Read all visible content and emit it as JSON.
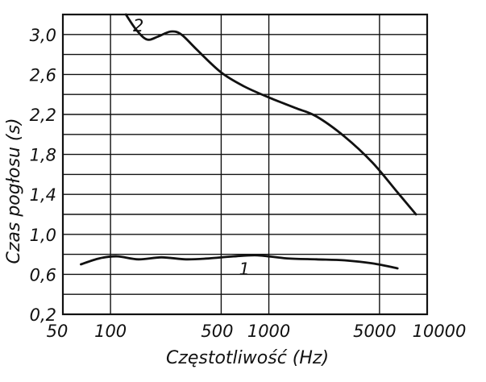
{
  "chart_data": {
    "type": "line",
    "title": "",
    "xlabel": "Częstotliwość (Hz)",
    "ylabel": "Czas pogłosu (s)",
    "xscale": "log",
    "xlim": [
      50,
      10000
    ],
    "ylim": [
      0.2,
      3.2
    ],
    "grid": true,
    "x_tick_labels": [
      "50",
      "100",
      "500",
      "1000",
      "5000",
      "10000"
    ],
    "y_tick_labels": [
      "3,0",
      "2,6",
      "2,2",
      "1,8",
      "1,4",
      "1,0",
      "0,6",
      "0,2"
    ],
    "series": [
      {
        "name": "1",
        "points": [
          {
            "x": 65,
            "y": 0.7
          },
          {
            "x": 85,
            "y": 0.76
          },
          {
            "x": 110,
            "y": 0.78
          },
          {
            "x": 150,
            "y": 0.75
          },
          {
            "x": 210,
            "y": 0.77
          },
          {
            "x": 300,
            "y": 0.75
          },
          {
            "x": 420,
            "y": 0.76
          },
          {
            "x": 600,
            "y": 0.78
          },
          {
            "x": 850,
            "y": 0.79
          },
          {
            "x": 1300,
            "y": 0.76
          },
          {
            "x": 2000,
            "y": 0.75
          },
          {
            "x": 3000,
            "y": 0.74
          },
          {
            "x": 4500,
            "y": 0.71
          },
          {
            "x": 6500,
            "y": 0.66
          }
        ]
      },
      {
        "name": "2",
        "points": [
          {
            "x": 125,
            "y": 3.2
          },
          {
            "x": 145,
            "y": 3.05
          },
          {
            "x": 170,
            "y": 2.95
          },
          {
            "x": 200,
            "y": 2.98
          },
          {
            "x": 240,
            "y": 3.03
          },
          {
            "x": 280,
            "y": 3.0
          },
          {
            "x": 350,
            "y": 2.85
          },
          {
            "x": 500,
            "y": 2.62
          },
          {
            "x": 700,
            "y": 2.48
          },
          {
            "x": 1000,
            "y": 2.37
          },
          {
            "x": 1500,
            "y": 2.26
          },
          {
            "x": 2000,
            "y": 2.18
          },
          {
            "x": 3000,
            "y": 1.98
          },
          {
            "x": 4500,
            "y": 1.72
          },
          {
            "x": 6500,
            "y": 1.42
          },
          {
            "x": 8500,
            "y": 1.2
          }
        ]
      }
    ]
  }
}
